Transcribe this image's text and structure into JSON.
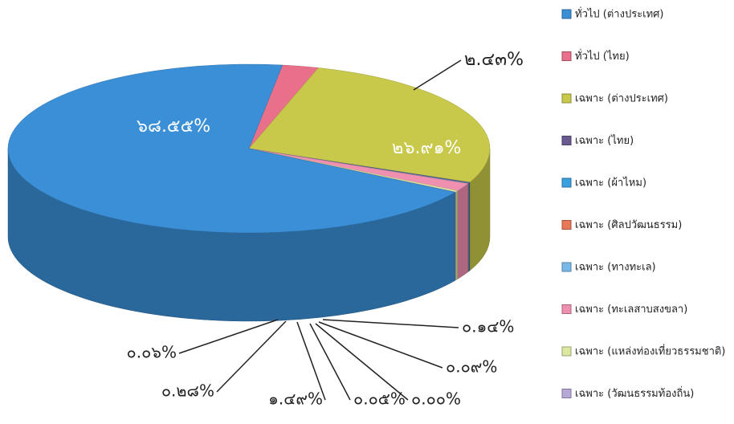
{
  "chart_data": {
    "type": "pie3d",
    "categories": [
      "ทั่วไป (ต่างประเทศ)",
      "ทั่วไป (ไทย)",
      "เฉพาะ (ต่างประเทศ)",
      "เฉพาะ (ไทย)",
      "เฉพาะ (ผ้าไหม)",
      "เฉพาะ (ศิลปวัฒนธรรม)",
      "เฉพาะ (ทางทะเล)",
      "เฉพาะ (ทะเลสาบสงขลา)",
      "เฉพาะ (แหล่งท่องเที่ยวธรรมชาติ)",
      "เฉพาะ (วัฒนธรรมท้องถิ่น)"
    ],
    "values": [
      68.55,
      2.43,
      26.91,
      0.14,
      0.09,
      0.0,
      0.05,
      1.49,
      0.28,
      0.06
    ],
    "value_labels": [
      "๖๘.๕๕%",
      "๒.๔๓%",
      "๒๖.๙๑%",
      "๐.๑๔%",
      "๐.๐๙%",
      "๐.๐๐%",
      "๐.๐๕%",
      "๑.๔๙%",
      "๐.๒๘%",
      "๐.๐๖%"
    ],
    "colors": [
      "#3a8fd6",
      "#e8708a",
      "#c8c84a",
      "#6a5a90",
      "#3aa0e0",
      "#e87858",
      "#78b8e8",
      "#f090b0",
      "#dce8a0",
      "#b8a8d8"
    ],
    "legend": "right"
  }
}
